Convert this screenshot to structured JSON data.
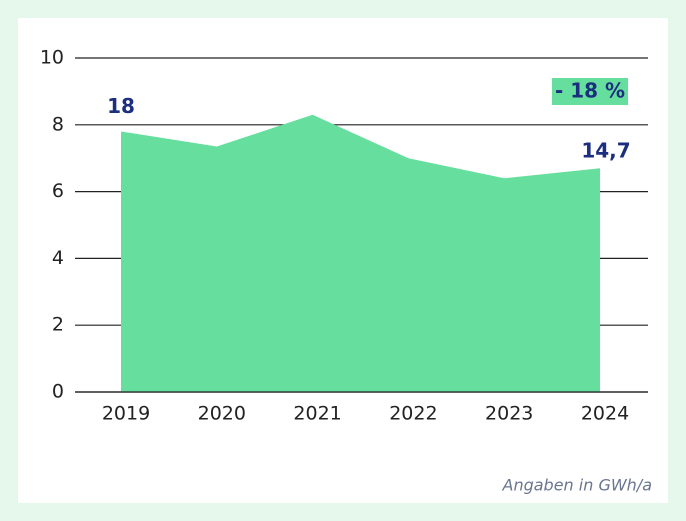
{
  "chart_data": {
    "type": "area",
    "categories": [
      "2019",
      "2020",
      "2021",
      "2022",
      "2023",
      "2024"
    ],
    "values": [
      7.8,
      7.35,
      8.3,
      7.0,
      6.4,
      6.7
    ],
    "color": "#66df9e",
    "ylim": [
      0,
      10
    ],
    "yticks": [
      0,
      2,
      4,
      6,
      8,
      10
    ],
    "grid": true,
    "annotations": [
      "18",
      "14,7",
      "- 18 %"
    ],
    "footnote": "Angaben in GWh/a"
  }
}
